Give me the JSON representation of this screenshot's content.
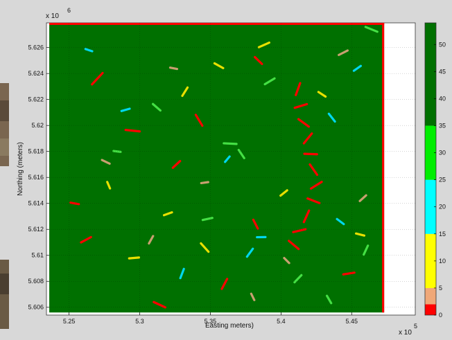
{
  "chart_data": {
    "type": "heatmap",
    "title": "",
    "xlabel": "Easting meters)",
    "ylabel": "Northing (meters)",
    "x_multiplier": "x 10",
    "x_exponent": "5",
    "y_multiplier": "x 10",
    "y_exponent": "6",
    "xlim": [
      523400,
      549500
    ],
    "ylim": [
      5605400,
      5627900
    ],
    "x_ticks": [
      525000,
      530000,
      535000,
      540000,
      545000
    ],
    "x_tick_labels": [
      "5.25",
      "5.3",
      "5.35",
      "5.4",
      "5.45"
    ],
    "y_ticks": [
      5606000,
      5608000,
      5610000,
      5612000,
      5614000,
      5616000,
      5618000,
      5620000,
      5622000,
      5624000,
      5626000
    ],
    "y_tick_labels": [
      "5.606",
      "5.608",
      "5.61",
      "5.612",
      "5.614",
      "5.616",
      "5.618",
      "5.62",
      "5.622",
      "5.624",
      "5.626"
    ],
    "data_extent_x": [
      523600,
      547300
    ],
    "data_extent_y": [
      5605600,
      5627900
    ],
    "grid": true,
    "background_value": 50,
    "colorbar": {
      "min": 0,
      "max": 54,
      "ticks": [
        0,
        5,
        10,
        15,
        20,
        25,
        30,
        35,
        40,
        45,
        50
      ],
      "tick_labels": [
        "0",
        "5",
        "10",
        "15",
        "20",
        "25",
        "30",
        "35",
        "40",
        "45",
        "50"
      ],
      "bands": [
        {
          "from": 0,
          "to": 2,
          "color": "#ff0000"
        },
        {
          "from": 2,
          "to": 5,
          "color": "#f0a878"
        },
        {
          "from": 5,
          "to": 15,
          "color": "#ffff00"
        },
        {
          "from": 15,
          "to": 25,
          "color": "#00ffff"
        },
        {
          "from": 25,
          "to": 35,
          "color": "#00ee00"
        },
        {
          "from": 35,
          "to": 54,
          "color": "#007000"
        }
      ]
    },
    "class_colors": {
      "red": "#ff0000",
      "tan": "#c8a070",
      "yellow": "#e8e000",
      "cyan": "#00d8ee",
      "lightgreen": "#44e044",
      "darkgreen": "#007000"
    },
    "features": [
      {
        "class": "red",
        "x": 541200,
        "y": 5622800,
        "len": 900
      },
      {
        "class": "red",
        "x": 541400,
        "y": 5621500,
        "len": 900
      },
      {
        "class": "red",
        "x": 541600,
        "y": 5620200,
        "len": 900
      },
      {
        "class": "red",
        "x": 541900,
        "y": 5619000,
        "len": 900
      },
      {
        "class": "red",
        "x": 542100,
        "y": 5617800,
        "len": 900
      },
      {
        "class": "red",
        "x": 542300,
        "y": 5616600,
        "len": 900
      },
      {
        "class": "red",
        "x": 542500,
        "y": 5615400,
        "len": 900
      },
      {
        "class": "red",
        "x": 542300,
        "y": 5614200,
        "len": 900
      },
      {
        "class": "red",
        "x": 541800,
        "y": 5613000,
        "len": 900
      },
      {
        "class": "red",
        "x": 541300,
        "y": 5611900,
        "len": 900
      },
      {
        "class": "red",
        "x": 540900,
        "y": 5610800,
        "len": 900
      },
      {
        "class": "red",
        "x": 527000,
        "y": 5623600,
        "len": 1100
      },
      {
        "class": "red",
        "x": 529500,
        "y": 5619600,
        "len": 1000
      },
      {
        "class": "red",
        "x": 534200,
        "y": 5620400,
        "len": 900
      },
      {
        "class": "red",
        "x": 526200,
        "y": 5611200,
        "len": 800
      },
      {
        "class": "red",
        "x": 531400,
        "y": 5606200,
        "len": 900
      },
      {
        "class": "red",
        "x": 536000,
        "y": 5607800,
        "len": 800
      },
      {
        "class": "red",
        "x": 544800,
        "y": 5608600,
        "len": 800
      },
      {
        "class": "red",
        "x": 538400,
        "y": 5625000,
        "len": 700
      },
      {
        "class": "red",
        "x": 532600,
        "y": 5617000,
        "len": 700
      },
      {
        "class": "red",
        "x": 525400,
        "y": 5614000,
        "len": 600
      },
      {
        "class": "red",
        "x": 538200,
        "y": 5612400,
        "len": 700
      },
      {
        "class": "yellow",
        "x": 538800,
        "y": 5626200,
        "len": 800
      },
      {
        "class": "yellow",
        "x": 535600,
        "y": 5624600,
        "len": 700
      },
      {
        "class": "yellow",
        "x": 533200,
        "y": 5622600,
        "len": 700
      },
      {
        "class": "yellow",
        "x": 529600,
        "y": 5609800,
        "len": 700
      },
      {
        "class": "yellow",
        "x": 534600,
        "y": 5610600,
        "len": 800
      },
      {
        "class": "yellow",
        "x": 540200,
        "y": 5614800,
        "len": 600
      },
      {
        "class": "yellow",
        "x": 545600,
        "y": 5611600,
        "len": 600
      },
      {
        "class": "yellow",
        "x": 527800,
        "y": 5615400,
        "len": 500
      },
      {
        "class": "yellow",
        "x": 532000,
        "y": 5613200,
        "len": 600
      },
      {
        "class": "yellow",
        "x": 542900,
        "y": 5622400,
        "len": 600
      },
      {
        "class": "cyan",
        "x": 537800,
        "y": 5610200,
        "len": 700
      },
      {
        "class": "cyan",
        "x": 538600,
        "y": 5611400,
        "len": 600
      },
      {
        "class": "cyan",
        "x": 543600,
        "y": 5620600,
        "len": 700
      },
      {
        "class": "cyan",
        "x": 545400,
        "y": 5624400,
        "len": 600
      },
      {
        "class": "cyan",
        "x": 526400,
        "y": 5625800,
        "len": 500
      },
      {
        "class": "cyan",
        "x": 533000,
        "y": 5608600,
        "len": 700
      },
      {
        "class": "cyan",
        "x": 529000,
        "y": 5621200,
        "len": 600
      },
      {
        "class": "cyan",
        "x": 544200,
        "y": 5612600,
        "len": 600
      },
      {
        "class": "cyan",
        "x": 536200,
        "y": 5617400,
        "len": 500
      },
      {
        "class": "lightgreen",
        "x": 536400,
        "y": 5618600,
        "len": 900
      },
      {
        "class": "lightgreen",
        "x": 537200,
        "y": 5617800,
        "len": 700
      },
      {
        "class": "lightgreen",
        "x": 539200,
        "y": 5623400,
        "len": 800
      },
      {
        "class": "lightgreen",
        "x": 546400,
        "y": 5627400,
        "len": 900
      },
      {
        "class": "lightgreen",
        "x": 546000,
        "y": 5610400,
        "len": 700
      },
      {
        "class": "lightgreen",
        "x": 534800,
        "y": 5612800,
        "len": 700
      },
      {
        "class": "lightgreen",
        "x": 531200,
        "y": 5621400,
        "len": 700
      },
      {
        "class": "lightgreen",
        "x": 541200,
        "y": 5608200,
        "len": 700
      },
      {
        "class": "lightgreen",
        "x": 528400,
        "y": 5618000,
        "len": 500
      },
      {
        "class": "lightgreen",
        "x": 543400,
        "y": 5606600,
        "len": 600
      },
      {
        "class": "tan",
        "x": 544400,
        "y": 5625600,
        "len": 700
      },
      {
        "class": "tan",
        "x": 527600,
        "y": 5617200,
        "len": 600
      },
      {
        "class": "tan",
        "x": 530800,
        "y": 5611200,
        "len": 600
      },
      {
        "class": "tan",
        "x": 534600,
        "y": 5615600,
        "len": 500
      },
      {
        "class": "tan",
        "x": 540400,
        "y": 5609600,
        "len": 500
      },
      {
        "class": "tan",
        "x": 545800,
        "y": 5614400,
        "len": 600
      },
      {
        "class": "tan",
        "x": 532400,
        "y": 5624400,
        "len": 500
      },
      {
        "class": "tan",
        "x": 538000,
        "y": 5606800,
        "len": 500
      }
    ]
  }
}
